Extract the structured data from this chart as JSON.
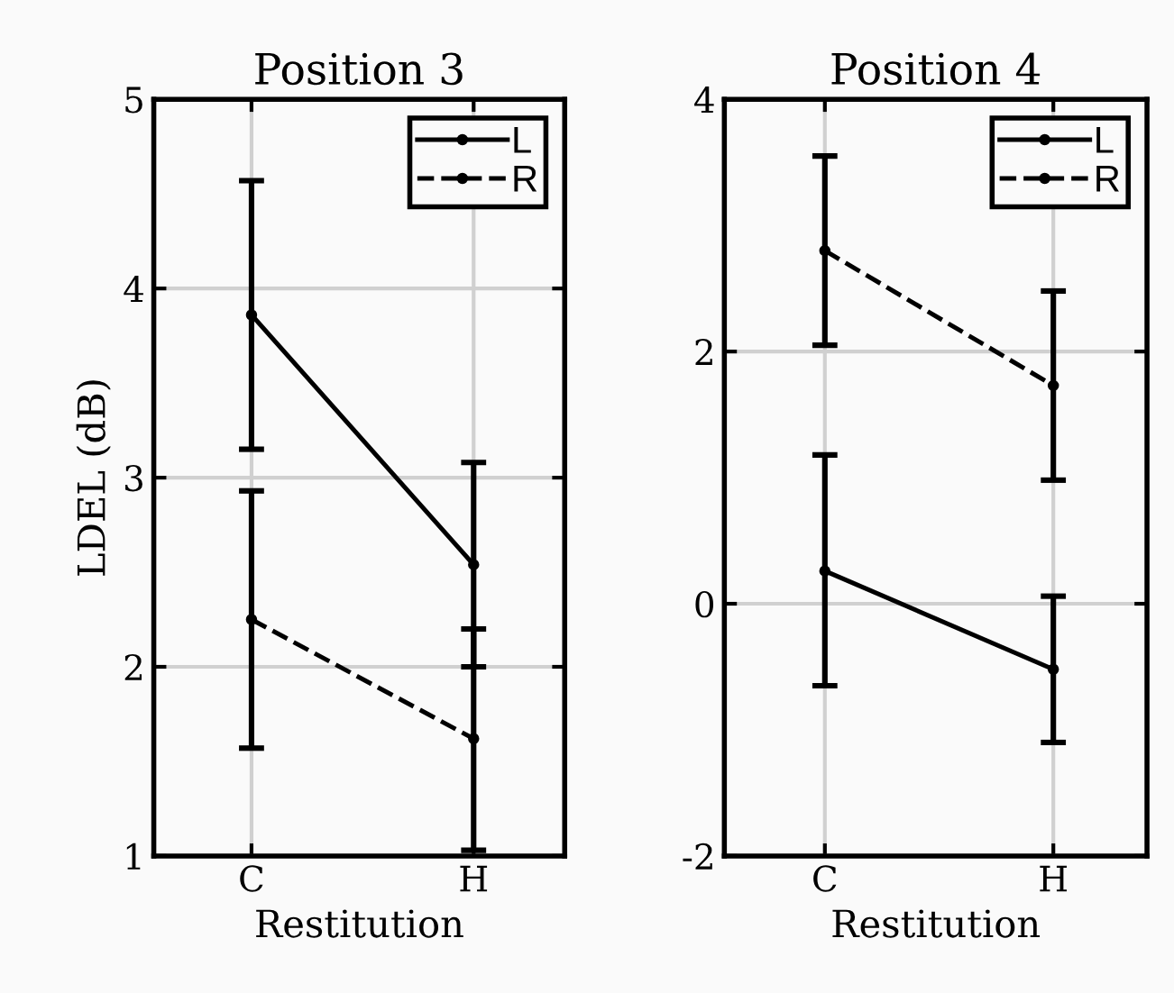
{
  "chart_data": [
    {
      "type": "line",
      "title": "Position 3",
      "xlabel": "Restitution",
      "ylabel": "LDEL (dB)",
      "categories": [
        "C",
        "H"
      ],
      "ylim": [
        1,
        5
      ],
      "yticks": [
        1,
        2,
        3,
        4,
        5
      ],
      "grid": true,
      "legend": "top right",
      "marker": "circle",
      "series": [
        {
          "name": "L",
          "color": "#000000",
          "line_style": "solid",
          "values": [
            3.86,
            2.54
          ],
          "errors": [
            [
              3.15,
              4.57
            ],
            [
              2.0,
              3.08
            ]
          ]
        },
        {
          "name": "R",
          "color": "#000000",
          "line_style": "dashed",
          "values": [
            2.25,
            1.62
          ],
          "errors": [
            [
              1.57,
              2.93
            ],
            [
              1.03,
              2.2
            ]
          ]
        }
      ]
    },
    {
      "type": "line",
      "title": "Position 4",
      "xlabel": "Restitution",
      "categories": [
        "C",
        "H"
      ],
      "ylim": [
        -2,
        4
      ],
      "yticks": [
        {
          "value": -2,
          "label": "-2"
        },
        0,
        2,
        4
      ],
      "grid": true,
      "legend": "top right",
      "marker": "circle",
      "series": [
        {
          "name": "L",
          "color": "#000000",
          "line_style": "solid",
          "values": [
            0.26,
            -0.52
          ],
          "errors": [
            [
              -0.65,
              1.18
            ],
            [
              -1.1,
              0.06
            ]
          ]
        },
        {
          "name": "R",
          "color": "#000000",
          "line_style": "dashed",
          "values": [
            2.8,
            1.73
          ],
          "errors": [
            [
              2.05,
              3.55
            ],
            [
              0.98,
              2.48
            ]
          ]
        }
      ]
    }
  ]
}
